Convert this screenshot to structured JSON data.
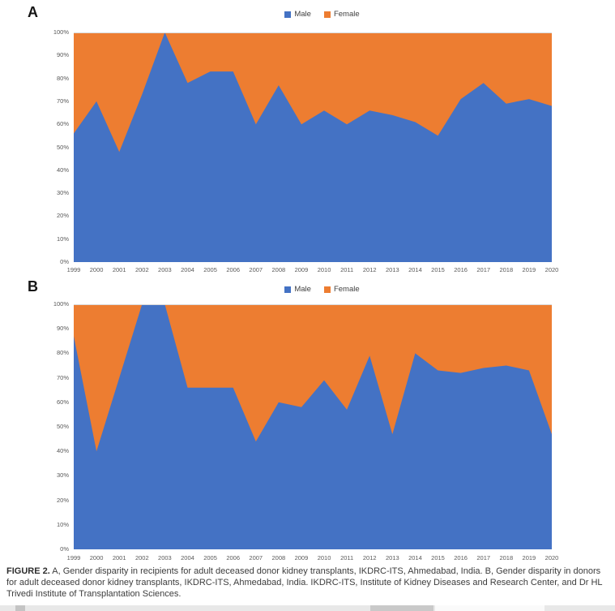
{
  "page": {
    "background": "#ffffff"
  },
  "legend": {
    "male": "Male",
    "female": "Female"
  },
  "colors": {
    "male": "#4472C4",
    "female": "#ED7D31",
    "axis_text": "#595959",
    "caption_text": "#3c3c3c"
  },
  "chart_data": [
    {
      "type": "area",
      "subtype": "100-percent-stacked",
      "panel_label": "A",
      "description": "Gender disparity in recipients for adult deceased donor kidney transplants, IKDRC-ITS, Ahmedabad, India",
      "x": [
        "1999",
        "2000",
        "2001",
        "2002",
        "2003",
        "2004",
        "2005",
        "2006",
        "2007",
        "2008",
        "2009",
        "2010",
        "2011",
        "2012",
        "2013",
        "2014",
        "2015",
        "2016",
        "2017",
        "2018",
        "2019",
        "2020"
      ],
      "series": [
        {
          "name": "Male",
          "color": "#4472C4",
          "values": [
            56,
            70,
            48,
            73,
            100,
            78,
            83,
            83,
            60,
            77,
            60,
            66,
            60,
            66,
            64,
            61,
            55,
            71,
            78,
            69,
            71,
            68
          ]
        },
        {
          "name": "Female",
          "color": "#ED7D31",
          "values": [
            44,
            30,
            52,
            27,
            0,
            22,
            17,
            17,
            40,
            23,
            40,
            34,
            40,
            34,
            36,
            39,
            45,
            29,
            22,
            31,
            29,
            32
          ]
        }
      ],
      "ylim": [
        0,
        100
      ],
      "yticks": [
        "0%",
        "10%",
        "20%",
        "30%",
        "40%",
        "50%",
        "60%",
        "70%",
        "80%",
        "90%",
        "100%"
      ],
      "legend_position": "top",
      "grid": false
    },
    {
      "type": "area",
      "subtype": "100-percent-stacked",
      "panel_label": "B",
      "description": "Gender disparity in donors for adult deceased donor kidney transplants, IKDRC-ITS, Ahmedabad, India",
      "x": [
        "1999",
        "2000",
        "2001",
        "2002",
        "2003",
        "2004",
        "2005",
        "2006",
        "2007",
        "2008",
        "2009",
        "2010",
        "2011",
        "2012",
        "2013",
        "2014",
        "2015",
        "2016",
        "2017",
        "2018",
        "2019",
        "2020"
      ],
      "series": [
        {
          "name": "Male",
          "color": "#4472C4",
          "values": [
            87,
            40,
            70,
            100,
            100,
            66,
            66,
            66,
            44,
            60,
            58,
            69,
            57,
            79,
            47,
            80,
            73,
            72,
            74,
            75,
            73,
            47
          ]
        },
        {
          "name": "Female",
          "color": "#ED7D31",
          "values": [
            13,
            60,
            30,
            0,
            0,
            34,
            34,
            34,
            56,
            40,
            42,
            31,
            43,
            21,
            53,
            20,
            27,
            28,
            26,
            25,
            27,
            53
          ]
        }
      ],
      "ylim": [
        0,
        100
      ],
      "yticks": [
        "0%",
        "10%",
        "20%",
        "30%",
        "40%",
        "50%",
        "60%",
        "70%",
        "80%",
        "90%",
        "100%"
      ],
      "legend_position": "top",
      "grid": false
    }
  ],
  "caption": {
    "label": "FIGURE 2.",
    "text": " A, Gender disparity in recipients for adult deceased donor kidney transplants, IKDRC-ITS, Ahmedabad, India. B, Gender disparity in donors for adult deceased donor kidney transplants, IKDRC-ITS, Ahmedabad, India. IKDRC-ITS, Institute of Kidney Diseases and Research Center, and Dr HL Trivedi Institute of Transplantation Sciences."
  }
}
